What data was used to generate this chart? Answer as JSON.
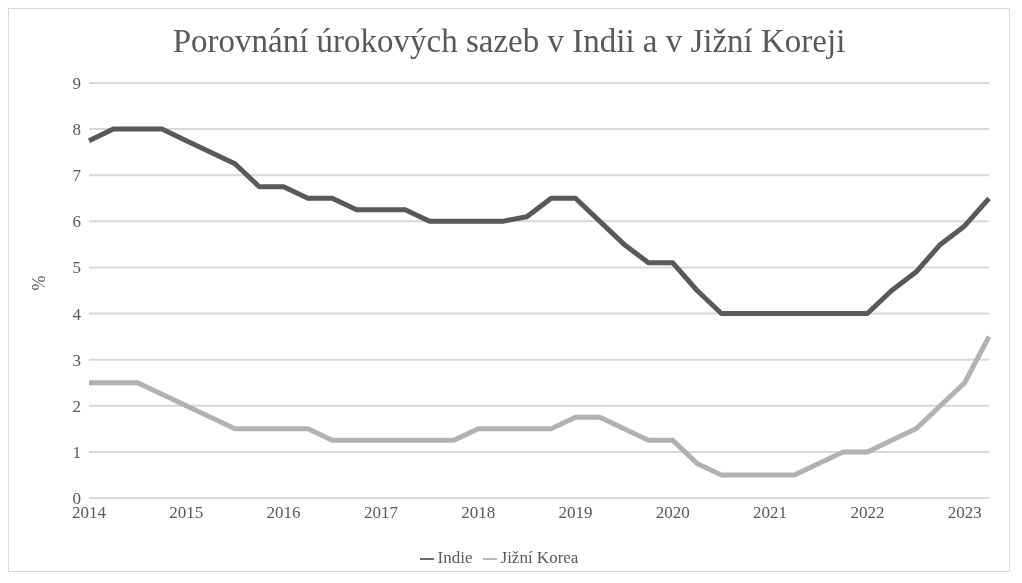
{
  "chart_data": {
    "type": "line",
    "title": "Porovnání úrokových sazeb v Indii a v Jižní Koreji",
    "ylabel": "%",
    "categories": [
      "2014",
      null,
      null,
      null,
      "2015",
      null,
      null,
      null,
      "2016",
      null,
      null,
      null,
      "2017",
      null,
      null,
      null,
      "2018",
      null,
      null,
      null,
      "2019",
      null,
      null,
      null,
      "2020",
      null,
      null,
      null,
      "2021",
      null,
      null,
      null,
      "2022",
      null,
      null,
      null,
      "2023",
      null
    ],
    "series": [
      {
        "name": "Indie",
        "color": "#595959",
        "values": [
          7.75,
          8,
          8,
          8,
          7.75,
          7.5,
          7.25,
          6.75,
          6.75,
          6.5,
          6.5,
          6.25,
          6.25,
          6.25,
          6,
          6,
          6,
          6,
          6.1,
          6.5,
          6.5,
          6,
          5.5,
          5.1,
          5.1,
          4.5,
          4,
          4,
          4,
          4,
          4,
          4,
          4,
          4.5,
          4.9,
          5.5,
          5.9,
          6.5
        ]
      },
      {
        "name": "Jižní Korea",
        "color": "#b2b2b2",
        "values": [
          2.5,
          2.5,
          2.5,
          2.25,
          2,
          1.75,
          1.5,
          1.5,
          1.5,
          1.5,
          1.25,
          1.25,
          1.25,
          1.25,
          1.25,
          1.25,
          1.5,
          1.5,
          1.5,
          1.5,
          1.75,
          1.75,
          1.5,
          1.25,
          1.25,
          0.75,
          0.5,
          0.5,
          0.5,
          0.5,
          0.75,
          1,
          1,
          1.25,
          1.5,
          2,
          2.5,
          3.5
        ]
      }
    ],
    "ylim": [
      0,
      9
    ],
    "yticks": [
      0,
      1,
      2,
      3,
      4,
      5,
      6,
      7,
      8,
      9
    ],
    "grid": "y",
    "legend": "bottom",
    "marker": "none",
    "line_style": "solid"
  }
}
